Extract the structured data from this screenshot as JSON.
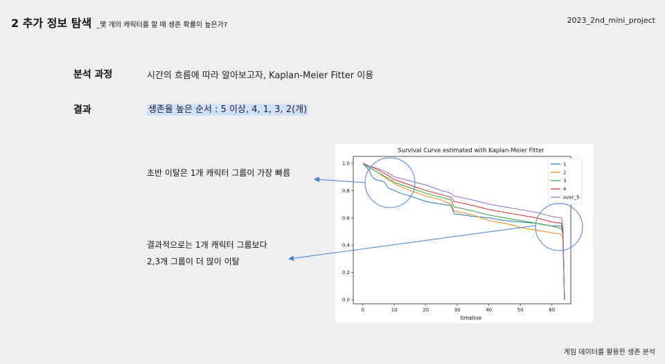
{
  "header": {
    "title": "2 추가 정보 탐색",
    "subtitle": "_몇 개의 캐릭터를 할 때 생존 확률이 높은가?",
    "project": "2023_2nd_mini_project"
  },
  "rows": [
    {
      "label": "분석 과정",
      "text": "시간의 흐름에 따라 알아보고자, Kaplan-Meier Fitter 이용"
    },
    {
      "label": "결과",
      "text": "생존율 높은 순서 : 5 이상, 4, 1, 3, 2(개)"
    }
  ],
  "notes": {
    "early": "초반 이탈은 1개 캐릭터 그룹이 가장 빠름",
    "late_line1": "결과적으로는 1개 캐릭터 그룹보다",
    "late_line2": "2,3개 그룹이 더 많이 이탈"
  },
  "footer": "게임 데이터를 활용한 생존 분석",
  "colors": {
    "highlight": "#cfe0fb",
    "annotation": "#3f7fe0"
  },
  "chart_data": {
    "type": "line",
    "title": "Survival Curve estimated with Kaplan-Meier Fitter",
    "xlabel": "timeline",
    "ylabel": "",
    "xlim": [
      -3,
      66
    ],
    "ylim": [
      -0.03,
      1.05
    ],
    "xticks": [
      0,
      10,
      20,
      30,
      40,
      50,
      60
    ],
    "yticks": [
      0.0,
      0.2,
      0.4,
      0.6,
      0.8,
      1.0
    ],
    "grid": false,
    "legend_position": "top-right",
    "series": [
      {
        "name": "1",
        "color": "#1f77b4",
        "points": [
          [
            0,
            1.0
          ],
          [
            2,
            0.95
          ],
          [
            3,
            0.9
          ],
          [
            4,
            0.88
          ],
          [
            6,
            0.87
          ],
          [
            7,
            0.86
          ],
          [
            8,
            0.82
          ],
          [
            10,
            0.8
          ],
          [
            12,
            0.78
          ],
          [
            15,
            0.76
          ],
          [
            20,
            0.72
          ],
          [
            25,
            0.7
          ],
          [
            28,
            0.69
          ],
          [
            29,
            0.63
          ],
          [
            32,
            0.62
          ],
          [
            35,
            0.61
          ],
          [
            40,
            0.6
          ],
          [
            45,
            0.58
          ],
          [
            50,
            0.57
          ],
          [
            55,
            0.56
          ],
          [
            60,
            0.54
          ],
          [
            63,
            0.54
          ],
          [
            63.5,
            0.5
          ],
          [
            64,
            0.0
          ]
        ]
      },
      {
        "name": "2",
        "color": "#ff7f0e",
        "points": [
          [
            0,
            1.0
          ],
          [
            2,
            0.97
          ],
          [
            5,
            0.93
          ],
          [
            8,
            0.88
          ],
          [
            10,
            0.85
          ],
          [
            15,
            0.8
          ],
          [
            20,
            0.76
          ],
          [
            25,
            0.73
          ],
          [
            28,
            0.7
          ],
          [
            29,
            0.65
          ],
          [
            35,
            0.62
          ],
          [
            40,
            0.58
          ],
          [
            45,
            0.56
          ],
          [
            50,
            0.53
          ],
          [
            55,
            0.51
          ],
          [
            60,
            0.49
          ],
          [
            63,
            0.48
          ],
          [
            63.5,
            0.45
          ],
          [
            64,
            0.0
          ]
        ]
      },
      {
        "name": "3",
        "color": "#2ca02c",
        "points": [
          [
            0,
            1.0
          ],
          [
            2,
            0.97
          ],
          [
            5,
            0.93
          ],
          [
            8,
            0.89
          ],
          [
            10,
            0.86
          ],
          [
            15,
            0.82
          ],
          [
            20,
            0.78
          ],
          [
            25,
            0.75
          ],
          [
            28,
            0.73
          ],
          [
            29,
            0.68
          ],
          [
            35,
            0.65
          ],
          [
            40,
            0.62
          ],
          [
            45,
            0.6
          ],
          [
            50,
            0.58
          ],
          [
            55,
            0.56
          ],
          [
            60,
            0.54
          ],
          [
            63,
            0.52
          ],
          [
            63.5,
            0.48
          ],
          [
            64,
            0.0
          ]
        ]
      },
      {
        "name": "4",
        "color": "#d62728",
        "points": [
          [
            0,
            1.0
          ],
          [
            2,
            0.98
          ],
          [
            5,
            0.95
          ],
          [
            8,
            0.91
          ],
          [
            10,
            0.88
          ],
          [
            15,
            0.84
          ],
          [
            20,
            0.8
          ],
          [
            25,
            0.77
          ],
          [
            28,
            0.75
          ],
          [
            29,
            0.72
          ],
          [
            35,
            0.69
          ],
          [
            40,
            0.66
          ],
          [
            45,
            0.64
          ],
          [
            50,
            0.62
          ],
          [
            55,
            0.6
          ],
          [
            60,
            0.57
          ],
          [
            63,
            0.56
          ],
          [
            63.5,
            0.5
          ],
          [
            64,
            0.0
          ]
        ]
      },
      {
        "name": "over_5",
        "color": "#9467bd",
        "points": [
          [
            0,
            1.0
          ],
          [
            2,
            0.98
          ],
          [
            5,
            0.96
          ],
          [
            8,
            0.93
          ],
          [
            10,
            0.9
          ],
          [
            15,
            0.87
          ],
          [
            20,
            0.84
          ],
          [
            25,
            0.8
          ],
          [
            28,
            0.78
          ],
          [
            29,
            0.76
          ],
          [
            35,
            0.73
          ],
          [
            40,
            0.7
          ],
          [
            45,
            0.68
          ],
          [
            50,
            0.66
          ],
          [
            55,
            0.64
          ],
          [
            60,
            0.61
          ],
          [
            63,
            0.6
          ],
          [
            63.5,
            0.55
          ],
          [
            64,
            0.0
          ]
        ]
      }
    ]
  }
}
